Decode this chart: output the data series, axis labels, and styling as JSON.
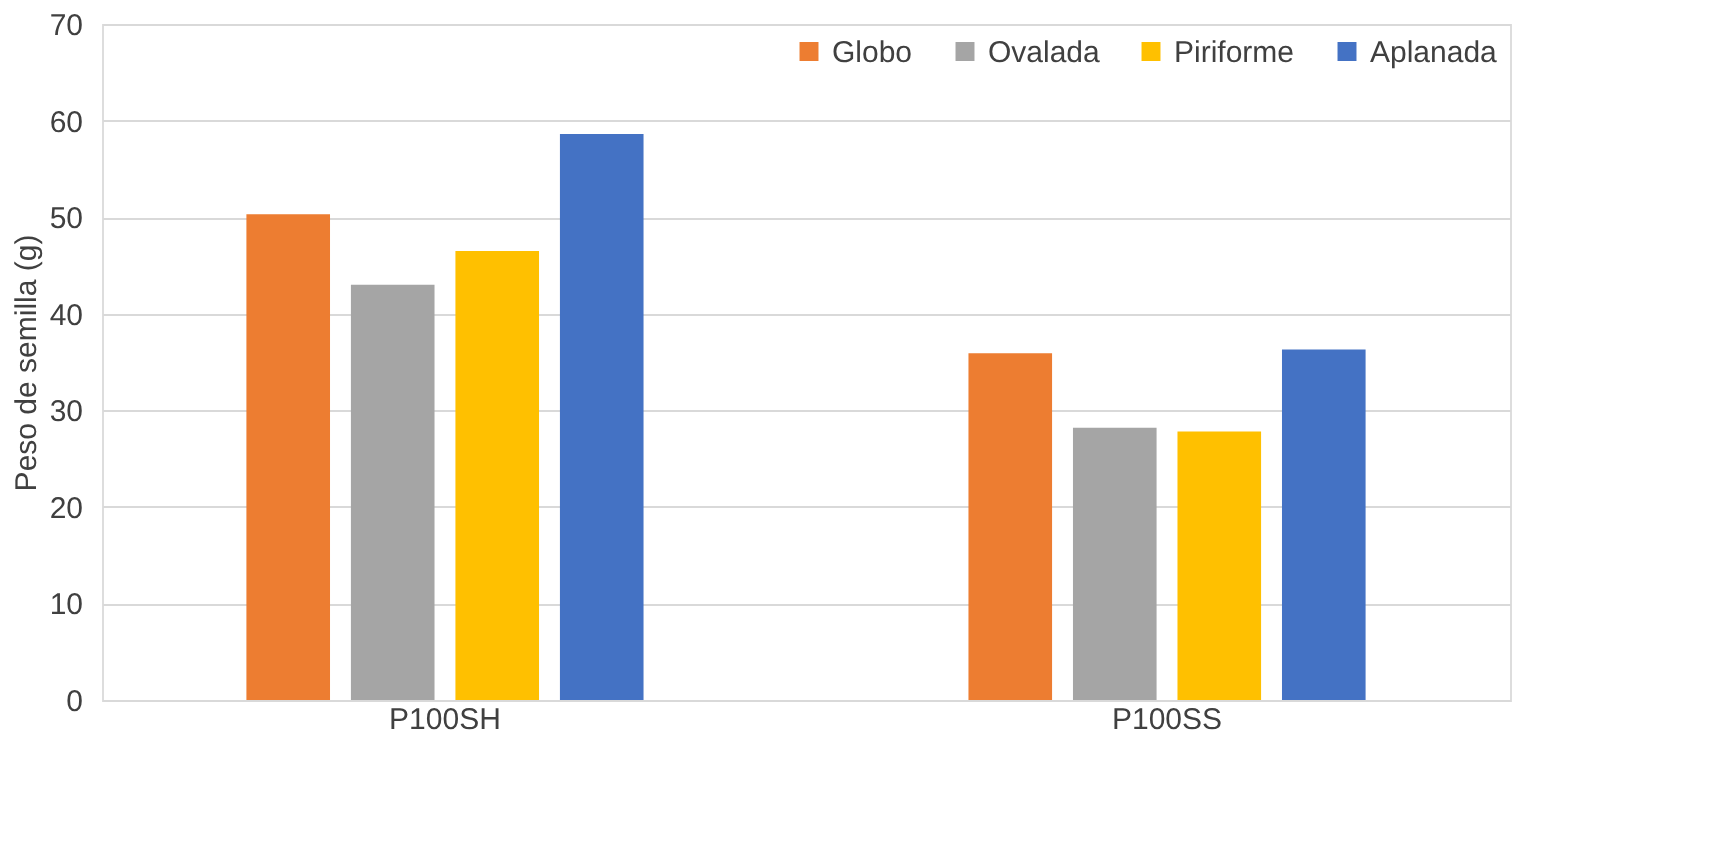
{
  "chart_data": {
    "type": "bar",
    "ylabel": "Peso de semilla (g)",
    "categories": [
      "P100SH",
      "P100SS"
    ],
    "series": [
      {
        "name": "Globo",
        "color": "#ed7d31",
        "values": [
          50.3,
          35.9
        ]
      },
      {
        "name": "Ovalada",
        "color": "#a5a5a5",
        "values": [
          43.0,
          28.2
        ]
      },
      {
        "name": "Piriforme",
        "color": "#ffc000",
        "values": [
          46.5,
          27.8
        ]
      },
      {
        "name": "Aplanada",
        "color": "#4472c4",
        "values": [
          58.6,
          36.3
        ]
      }
    ],
    "ylim": [
      0,
      70
    ],
    "yticks": [
      0,
      10,
      20,
      30,
      40,
      50,
      60,
      70
    ],
    "grid": "y",
    "legend": "top right"
  }
}
